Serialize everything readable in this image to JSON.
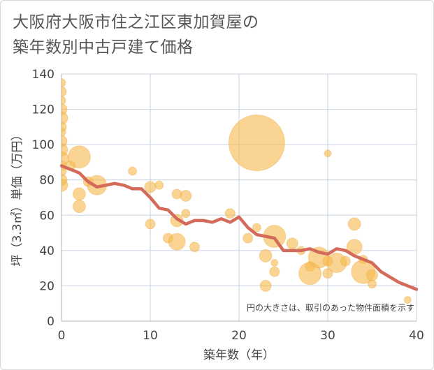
{
  "header": {
    "title_line1": "大阪府大阪市住之江区東加賀屋の",
    "title_line2": "築年数別中古戸建て価格"
  },
  "chart_data": {
    "type": "scatter",
    "xlabel": "築年数（年）",
    "ylabel": "坪（3.3㎡）単価（万円）",
    "xlim": [
      0,
      40
    ],
    "ylim": [
      0,
      140
    ],
    "xticks": [
      0,
      10,
      20,
      30,
      40
    ],
    "yticks": [
      0,
      20,
      40,
      60,
      80,
      100,
      120,
      140
    ],
    "grid": true,
    "note": "円の大きさは、取引のあった物件面積を示す",
    "colors": {
      "bubble": "#f5b94f",
      "line": "#d46a5a",
      "grid": "#c9d3e0"
    },
    "bubbles": [
      {
        "x": 0,
        "y": 135,
        "size": 6
      },
      {
        "x": 0,
        "y": 130,
        "size": 7
      },
      {
        "x": 0,
        "y": 125,
        "size": 6
      },
      {
        "x": 0,
        "y": 120,
        "size": 8
      },
      {
        "x": 0,
        "y": 115,
        "size": 9
      },
      {
        "x": 0,
        "y": 110,
        "size": 7
      },
      {
        "x": 0,
        "y": 107,
        "size": 6
      },
      {
        "x": 0,
        "y": 102,
        "size": 8
      },
      {
        "x": 0,
        "y": 97,
        "size": 9
      },
      {
        "x": 0,
        "y": 92,
        "size": 10
      },
      {
        "x": 0,
        "y": 88,
        "size": 7
      },
      {
        "x": 0,
        "y": 85,
        "size": 7
      },
      {
        "x": 0,
        "y": 80,
        "size": 8
      },
      {
        "x": 0,
        "y": 77,
        "size": 9
      },
      {
        "x": 1,
        "y": 88,
        "size": 7
      },
      {
        "x": 2,
        "y": 93,
        "size": 16
      },
      {
        "x": 2,
        "y": 72,
        "size": 9
      },
      {
        "x": 2,
        "y": 65,
        "size": 9
      },
      {
        "x": 3,
        "y": 79,
        "size": 7
      },
      {
        "x": 4,
        "y": 77,
        "size": 14
      },
      {
        "x": 8,
        "y": 85,
        "size": 6
      },
      {
        "x": 10,
        "y": 76,
        "size": 8
      },
      {
        "x": 10,
        "y": 55,
        "size": 7
      },
      {
        "x": 11,
        "y": 77,
        "size": 6
      },
      {
        "x": 12,
        "y": 47,
        "size": 7
      },
      {
        "x": 13,
        "y": 72,
        "size": 7
      },
      {
        "x": 13,
        "y": 57,
        "size": 9
      },
      {
        "x": 13,
        "y": 45,
        "size": 12
      },
      {
        "x": 14,
        "y": 71,
        "size": 8
      },
      {
        "x": 14,
        "y": 61,
        "size": 6
      },
      {
        "x": 15,
        "y": 42,
        "size": 7
      },
      {
        "x": 19,
        "y": 61,
        "size": 7
      },
      {
        "x": 21,
        "y": 47,
        "size": 7
      },
      {
        "x": 22,
        "y": 101,
        "size": 40
      },
      {
        "x": 22,
        "y": 53,
        "size": 6
      },
      {
        "x": 23,
        "y": 37,
        "size": 9
      },
      {
        "x": 23,
        "y": 20,
        "size": 8
      },
      {
        "x": 24,
        "y": 48,
        "size": 16
      },
      {
        "x": 24,
        "y": 33,
        "size": 5
      },
      {
        "x": 24,
        "y": 28,
        "size": 7
      },
      {
        "x": 26,
        "y": 44,
        "size": 8
      },
      {
        "x": 27,
        "y": 40,
        "size": 6
      },
      {
        "x": 28,
        "y": 31,
        "size": 7
      },
      {
        "x": 28,
        "y": 27,
        "size": 16
      },
      {
        "x": 29,
        "y": 36,
        "size": 15
      },
      {
        "x": 30,
        "y": 95,
        "size": 5
      },
      {
        "x": 30,
        "y": 34,
        "size": 7
      },
      {
        "x": 30,
        "y": 27,
        "size": 7
      },
      {
        "x": 31,
        "y": 33,
        "size": 14
      },
      {
        "x": 32,
        "y": 34,
        "size": 7
      },
      {
        "x": 33,
        "y": 55,
        "size": 9
      },
      {
        "x": 33,
        "y": 42,
        "size": 11
      },
      {
        "x": 34,
        "y": 35,
        "size": 6
      },
      {
        "x": 34,
        "y": 28,
        "size": 17
      },
      {
        "x": 35,
        "y": 26,
        "size": 8
      },
      {
        "x": 35,
        "y": 21,
        "size": 6
      },
      {
        "x": 39,
        "y": 12,
        "size": 5
      }
    ],
    "trend": {
      "x": [
        0,
        1,
        2,
        3,
        4,
        5,
        6,
        7,
        8,
        9,
        10,
        11,
        12,
        13,
        14,
        15,
        16,
        17,
        18,
        19,
        20,
        21,
        22,
        23,
        24,
        25,
        26,
        27,
        28,
        29,
        30,
        31,
        32,
        33,
        34,
        35,
        36,
        37,
        38,
        39,
        40
      ],
      "y": [
        88,
        86,
        84,
        79,
        76,
        77,
        78,
        77,
        75,
        75,
        70,
        64,
        63,
        58,
        55,
        57,
        57,
        56,
        58,
        56,
        59,
        53,
        49,
        48,
        47,
        40,
        40,
        40,
        41,
        39,
        38,
        41,
        40,
        37,
        35,
        33,
        28,
        25,
        22,
        20,
        18
      ]
    }
  }
}
